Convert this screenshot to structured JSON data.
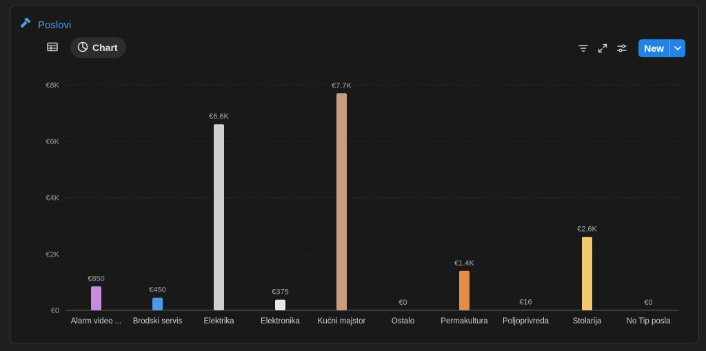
{
  "database": {
    "title": "Poslovi",
    "icon": "hammer-icon"
  },
  "views": [
    {
      "label": "",
      "icon": "table-icon",
      "active": false
    },
    {
      "label": "Chart",
      "icon": "pie-chart-icon",
      "active": true
    }
  ],
  "toolbar": {
    "new_label": "New"
  },
  "colors": {
    "accent": "#2383e2",
    "title": "#4a9be8"
  },
  "chart_data": {
    "type": "bar",
    "categories": [
      "Alarm video ...",
      "Brodski servis",
      "Elektrika",
      "Elektronika",
      "Kućni majstor",
      "Ostalo",
      "Permakultura",
      "Poljoprivreda",
      "Stolarija",
      "No Tip posla"
    ],
    "values": [
      850,
      450,
      6600,
      375,
      7700,
      0,
      1400,
      16,
      2600,
      0
    ],
    "value_labels": [
      "€850",
      "€450",
      "€6.6K",
      "€375",
      "€7.7K",
      "€0",
      "€1.4K",
      "€16",
      "€2.6K",
      "€0"
    ],
    "colors": [
      "#c88be0",
      "#4e98ea",
      "#cfcfcf",
      "#e8e8e8",
      "#c99c7e",
      "#9a9a9a",
      "#e48c48",
      "#d15b5b",
      "#f1c972",
      "#9a9a9a"
    ],
    "ylim": [
      0,
      8000
    ],
    "yticks": [
      0,
      2000,
      4000,
      6000,
      8000
    ],
    "ytick_labels": [
      "€0",
      "€2K",
      "€4K",
      "€6K",
      "€8K"
    ],
    "grid": true
  }
}
